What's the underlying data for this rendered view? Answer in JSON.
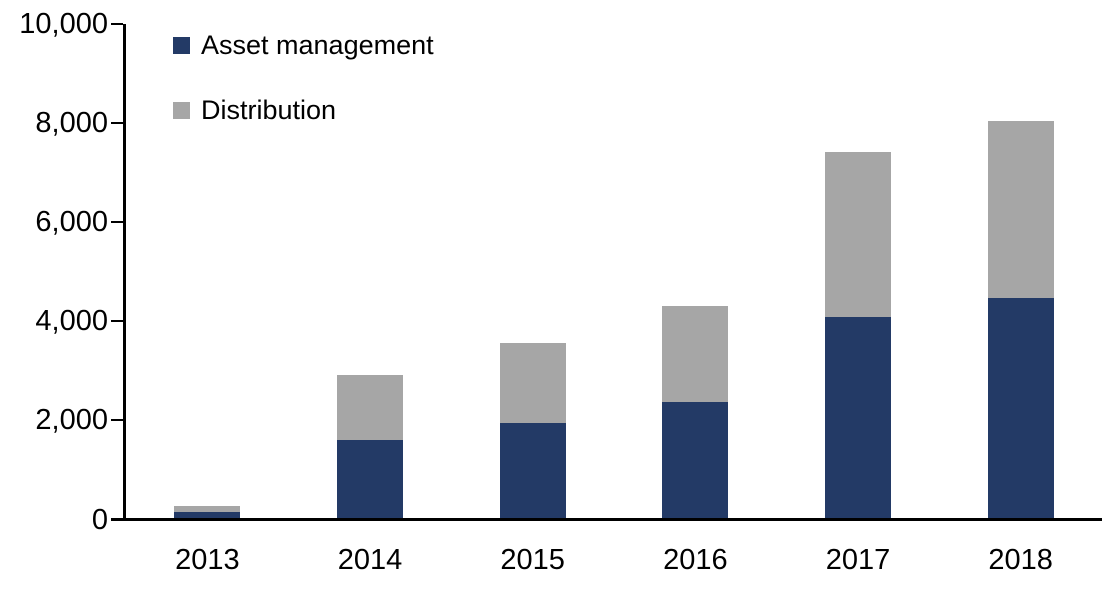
{
  "chart_data": {
    "type": "bar",
    "stacked": true,
    "title": "",
    "xlabel": "",
    "ylabel": "",
    "categories": [
      "2013",
      "2014",
      "2015",
      "2016",
      "2017",
      "2018"
    ],
    "series": [
      {
        "name": "Asset management",
        "color": "#233A66",
        "values": [
          120,
          1580,
          1910,
          2330,
          4060,
          4430
        ]
      },
      {
        "name": "Distribution",
        "color": "#A6A6A6",
        "values": [
          120,
          1300,
          1620,
          1950,
          3330,
          3570
        ]
      }
    ],
    "totals": [
      240,
      2880,
      3530,
      4280,
      7390,
      8000
    ],
    "ylim": [
      0,
      10000
    ],
    "y_tick_interval": 2000,
    "y_tick_labels": [
      "0",
      "2,000",
      "4,000",
      "6,000",
      "8,000",
      "10,000"
    ],
    "grid": false,
    "legend_position": "top-left",
    "axis_color": "#000000",
    "text_color": "#000000",
    "background_color": "#FFFFFF"
  }
}
